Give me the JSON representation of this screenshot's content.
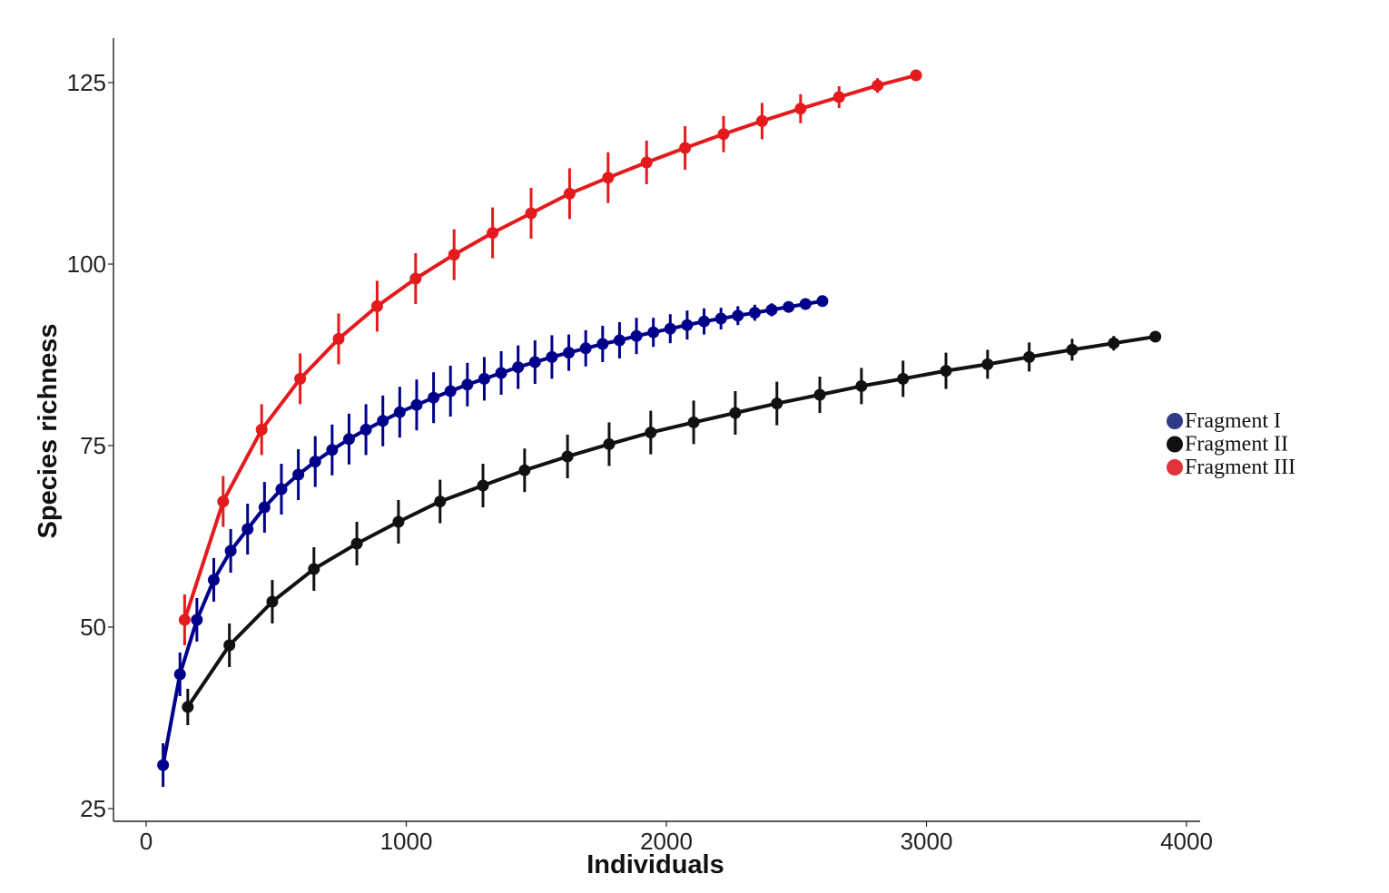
{
  "chart_data": {
    "type": "line",
    "title": "",
    "xlabel": "Individuals",
    "ylabel": "Species richness",
    "xlim": [
      -120,
      4100
    ],
    "ylim": [
      22,
      128
    ],
    "xticks": [
      0,
      1000,
      2000,
      3000,
      4000
    ],
    "yticks": [
      25,
      50,
      75,
      100,
      125
    ],
    "grid": false,
    "legend_position": "right",
    "series": [
      {
        "name": "Fragment I",
        "color": "#00008b",
        "legend_color": "#2e3a87",
        "x": [
          65,
          130,
          195,
          260,
          325,
          390,
          455,
          520,
          585,
          650,
          715,
          780,
          845,
          910,
          975,
          1040,
          1105,
          1170,
          1235,
          1300,
          1365,
          1430,
          1495,
          1560,
          1625,
          1690,
          1755,
          1820,
          1885,
          1950,
          2015,
          2080,
          2145,
          2210,
          2275,
          2340,
          2405,
          2470,
          2535,
          2600
        ],
        "y": [
          31,
          43.5,
          51,
          56.5,
          60.5,
          63.5,
          66.5,
          69,
          71,
          72.8,
          74.4,
          75.9,
          77.2,
          78.4,
          79.6,
          80.6,
          81.6,
          82.5,
          83.4,
          84.2,
          85,
          85.8,
          86.5,
          87.2,
          87.8,
          88.4,
          89,
          89.5,
          90.1,
          90.6,
          91.1,
          91.6,
          92.1,
          92.5,
          92.9,
          93.3,
          93.7,
          94.1,
          94.5,
          94.9
        ],
        "err": [
          3,
          3,
          3,
          3,
          3,
          3.5,
          3.5,
          3.5,
          3.5,
          3.5,
          3.5,
          3.5,
          3.5,
          3.5,
          3.5,
          3.5,
          3.5,
          3.5,
          3,
          3,
          3,
          3,
          3,
          3,
          2.5,
          2.5,
          2.5,
          2.5,
          2.5,
          2,
          2,
          2,
          1.8,
          1.5,
          1.3,
          1.1,
          0.9,
          0.7,
          0.5,
          0
        ]
      },
      {
        "name": "Fragment II",
        "color": "#111111",
        "legend_color": "#111111",
        "x": [
          160,
          320,
          485,
          645,
          810,
          970,
          1130,
          1295,
          1455,
          1620,
          1780,
          1940,
          2105,
          2265,
          2425,
          2590,
          2750,
          2910,
          3075,
          3235,
          3395,
          3560,
          3720,
          3880
        ],
        "y": [
          39,
          47.5,
          53.5,
          58,
          61.5,
          64.5,
          67.3,
          69.5,
          71.6,
          73.5,
          75.2,
          76.8,
          78.2,
          79.5,
          80.8,
          82,
          83.2,
          84.2,
          85.3,
          86.2,
          87.2,
          88.2,
          89.1,
          90
        ],
        "err": [
          2.5,
          3,
          3,
          3,
          3,
          3,
          3,
          3,
          3,
          3,
          3,
          3,
          3,
          3,
          3,
          2.5,
          2.5,
          2.5,
          2.5,
          2,
          2,
          1.5,
          1,
          0
        ]
      },
      {
        "name": "Fragment III",
        "color": "#e41a1c",
        "legend_color": "#e2333a",
        "x": [
          148,
          296,
          444,
          592,
          740,
          888,
          1036,
          1184,
          1332,
          1480,
          1628,
          1776,
          1924,
          2072,
          2220,
          2368,
          2516,
          2664,
          2812,
          2960
        ],
        "y": [
          51,
          67.3,
          77.2,
          84.2,
          89.7,
          94.2,
          98,
          101.3,
          104.3,
          107,
          109.7,
          111.9,
          114,
          116,
          117.9,
          119.7,
          121.4,
          123,
          124.6,
          126
        ],
        "err": [
          3.5,
          3.5,
          3.5,
          3.5,
          3.5,
          3.5,
          3.5,
          3.5,
          3.5,
          3.5,
          3.5,
          3.5,
          3,
          3,
          2.5,
          2.5,
          2,
          1.5,
          1,
          0
        ]
      }
    ]
  }
}
